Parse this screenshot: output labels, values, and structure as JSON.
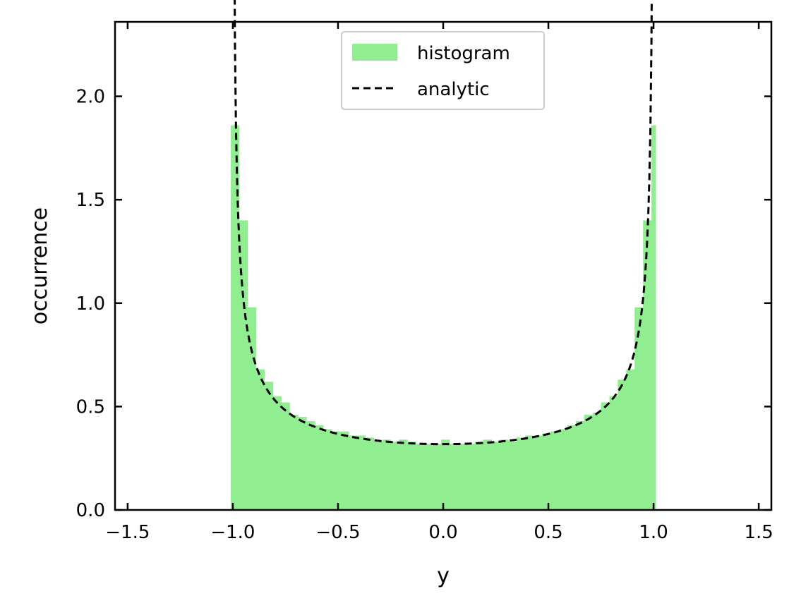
{
  "chart_data": {
    "type": "bar",
    "title": "",
    "xlabel": "y",
    "ylabel": "occurrence",
    "xlim": [
      -1.56,
      1.56
    ],
    "ylim": [
      0,
      2.36
    ],
    "xticks": [
      -1.5,
      -1.0,
      -0.5,
      0.0,
      0.5,
      1.0,
      1.5
    ],
    "xtick_labels": [
      "−1.5",
      "−1.0",
      "−0.5",
      "0.0",
      "0.5",
      "1.0",
      "1.5"
    ],
    "yticks": [
      0.0,
      0.5,
      1.0,
      1.5,
      2.0
    ],
    "ytick_labels": [
      "0.0",
      "0.5",
      "1.0",
      "1.5",
      "2.0"
    ],
    "grid": false,
    "legend_position": "upper center",
    "ticks_direction": "in",
    "series": [
      {
        "name": "histogram",
        "type": "histogram",
        "color": "#90ee90",
        "bin_edges": [
          -1.01,
          -0.97,
          -0.93,
          -0.89,
          -0.85,
          -0.81,
          -0.77,
          -0.73,
          -0.69,
          -0.65,
          -0.61,
          -0.57,
          -0.53,
          -0.49,
          -0.45,
          -0.41,
          -0.37,
          -0.33,
          -0.29,
          -0.25,
          -0.21,
          -0.17,
          -0.13,
          -0.09,
          -0.05,
          -0.01,
          0.03,
          0.07,
          0.11,
          0.15,
          0.19,
          0.23,
          0.27,
          0.31,
          0.35,
          0.39,
          0.43,
          0.47,
          0.51,
          0.55,
          0.59,
          0.63,
          0.67,
          0.71,
          0.75,
          0.79,
          0.83,
          0.87,
          0.91,
          0.95,
          0.99,
          1.01
        ],
        "values": [
          1.86,
          1.4,
          0.98,
          0.68,
          0.62,
          0.55,
          0.52,
          0.46,
          0.45,
          0.43,
          0.41,
          0.39,
          0.38,
          0.38,
          0.36,
          0.36,
          0.35,
          0.33,
          0.34,
          0.33,
          0.34,
          0.33,
          0.32,
          0.32,
          0.32,
          0.34,
          0.32,
          0.32,
          0.32,
          0.33,
          0.34,
          0.33,
          0.34,
          0.33,
          0.35,
          0.36,
          0.36,
          0.37,
          0.38,
          0.39,
          0.41,
          0.43,
          0.46,
          0.47,
          0.52,
          0.55,
          0.63,
          0.68,
          0.98,
          1.4,
          1.86
        ]
      },
      {
        "name": "analytic",
        "type": "line",
        "color": "#000000",
        "linestyle": "dashed",
        "formula": "1/(pi*sqrt(1-y^2))",
        "x_range": [
          -0.995,
          0.995
        ]
      }
    ]
  }
}
